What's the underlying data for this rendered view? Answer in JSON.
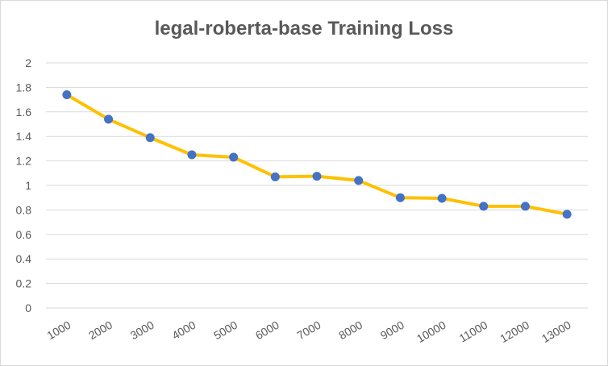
{
  "chart_data": {
    "type": "line",
    "title": "legal-roberta-base Training Loss",
    "xlabel": "",
    "ylabel": "",
    "categories": [
      "1000",
      "2000",
      "3000",
      "4000",
      "5000",
      "6000",
      "7000",
      "8000",
      "9000",
      "10000",
      "11000",
      "12000",
      "13000"
    ],
    "series": [
      {
        "values": [
          1.74,
          1.54,
          1.39,
          1.25,
          1.23,
          1.07,
          1.075,
          1.04,
          0.9,
          0.895,
          0.83,
          0.83,
          0.765
        ]
      }
    ],
    "ylim": [
      0,
      2
    ],
    "yticks": [
      "0",
      "0.2",
      "0.4",
      "0.6",
      "0.8",
      "1",
      "1.2",
      "1.4",
      "1.6",
      "1.8",
      "2"
    ],
    "grid": true,
    "legend": "none",
    "colors": {
      "line": "#FFC000",
      "marker": "#4472C4",
      "grid": "#D9D9D9",
      "text": "#595959"
    }
  }
}
